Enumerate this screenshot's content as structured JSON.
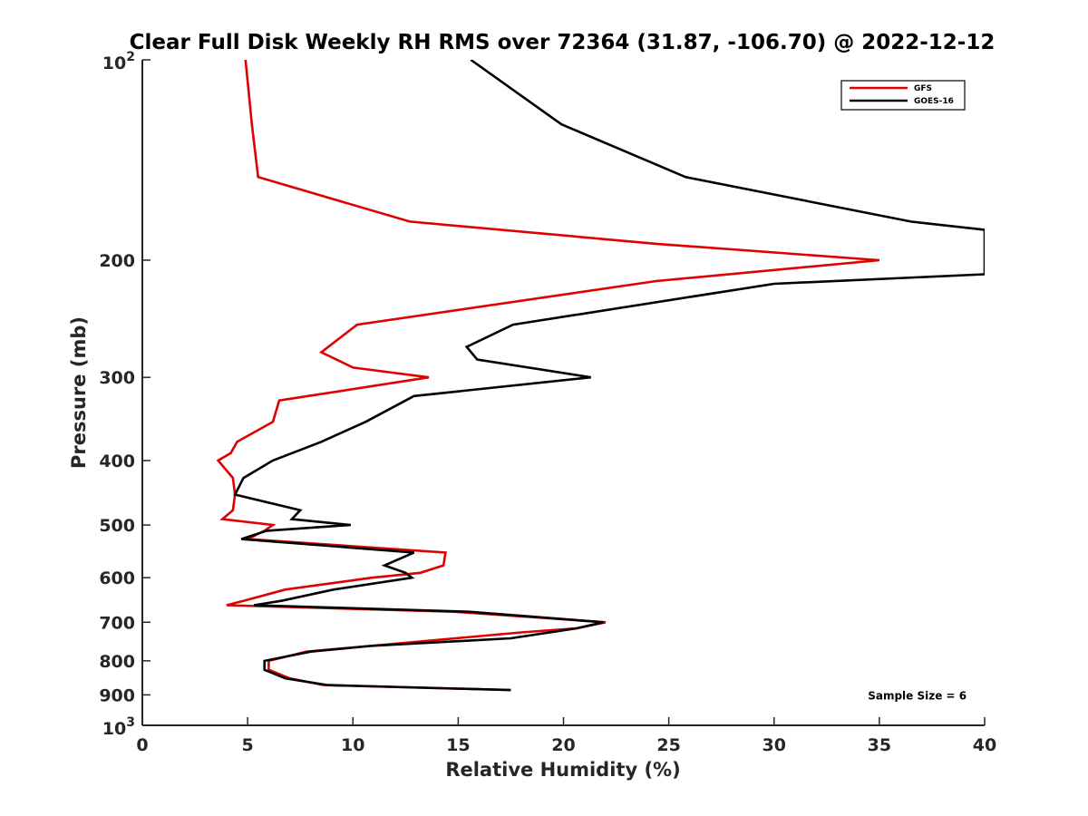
{
  "chart_data": {
    "type": "line",
    "title": "Clear Full Disk Weekly RH RMS over 72364 (31.87, -106.70) @ 2022-12-12",
    "xlabel": "Relative Humidity (%)",
    "ylabel": "Pressure (mb)",
    "xlim": [
      0,
      40
    ],
    "ylim": [
      100,
      1000
    ],
    "y_scale": "log",
    "y_reversed": true,
    "grid": false,
    "legend_position": "top-right",
    "x_ticks": [
      0,
      5,
      10,
      15,
      20,
      25,
      30,
      35,
      40
    ],
    "y_ticks": [
      {
        "value": 100,
        "base": "10",
        "exp": "2"
      },
      {
        "value": 200,
        "label": "200"
      },
      {
        "value": 300,
        "label": "300"
      },
      {
        "value": 400,
        "label": "400"
      },
      {
        "value": 500,
        "label": "500"
      },
      {
        "value": 600,
        "label": "600"
      },
      {
        "value": 700,
        "label": "700"
      },
      {
        "value": 800,
        "label": "800"
      },
      {
        "value": 900,
        "label": "900"
      },
      {
        "value": 1000,
        "base": "10",
        "exp": "3"
      }
    ],
    "series": [
      {
        "name": "GFS",
        "color": "#e00000",
        "points": [
          [
            4.9,
            100
          ],
          [
            5.2,
            125
          ],
          [
            5.5,
            150
          ],
          [
            12.7,
            175
          ],
          [
            24.4,
            189
          ],
          [
            35.0,
            200
          ],
          [
            24.4,
            215
          ],
          [
            10.2,
            250
          ],
          [
            8.5,
            275
          ],
          [
            10.0,
            290
          ],
          [
            13.6,
            300
          ],
          [
            6.5,
            325
          ],
          [
            6.2,
            350
          ],
          [
            4.5,
            375
          ],
          [
            4.2,
            390
          ],
          [
            3.6,
            400
          ],
          [
            4.3,
            425
          ],
          [
            4.4,
            450
          ],
          [
            4.3,
            475
          ],
          [
            3.8,
            490
          ],
          [
            6.2,
            500
          ],
          [
            5.8,
            510
          ],
          [
            5.0,
            525
          ],
          [
            14.4,
            550
          ],
          [
            14.3,
            575
          ],
          [
            13.2,
            590
          ],
          [
            10.9,
            600
          ],
          [
            6.8,
            625
          ],
          [
            4.8,
            650
          ],
          [
            4.0,
            660
          ],
          [
            14.8,
            675
          ],
          [
            22.0,
            700
          ],
          [
            20.6,
            715
          ],
          [
            18.0,
            725
          ],
          [
            7.8,
            775
          ],
          [
            6.0,
            800
          ],
          [
            6.0,
            825
          ],
          [
            7.0,
            850
          ],
          [
            8.6,
            870
          ],
          [
            17.5,
            885
          ]
        ]
      },
      {
        "name": "GOES-16",
        "color": "#000000",
        "points": [
          [
            15.6,
            100
          ],
          [
            19.9,
            125
          ],
          [
            25.8,
            150
          ],
          [
            36.5,
            175
          ],
          [
            40.0,
            180
          ],
          [
            40.0,
            210
          ],
          [
            30.0,
            217
          ],
          [
            17.6,
            250
          ],
          [
            15.4,
            270
          ],
          [
            15.9,
            282
          ],
          [
            21.3,
            300
          ],
          [
            12.9,
            320
          ],
          [
            10.6,
            350
          ],
          [
            8.5,
            375
          ],
          [
            6.2,
            400
          ],
          [
            4.8,
            425
          ],
          [
            4.4,
            450
          ],
          [
            7.5,
            475
          ],
          [
            7.1,
            490
          ],
          [
            9.9,
            500
          ],
          [
            5.9,
            510
          ],
          [
            4.7,
            525
          ],
          [
            12.9,
            550
          ],
          [
            11.5,
            575
          ],
          [
            12.5,
            590
          ],
          [
            12.8,
            600
          ],
          [
            9.1,
            625
          ],
          [
            6.6,
            650
          ],
          [
            5.3,
            660
          ],
          [
            15.5,
            675
          ],
          [
            21.9,
            700
          ],
          [
            20.6,
            715
          ],
          [
            17.5,
            740
          ],
          [
            10.8,
            760
          ],
          [
            8.0,
            775
          ],
          [
            5.8,
            800
          ],
          [
            5.8,
            825
          ],
          [
            6.8,
            850
          ],
          [
            8.8,
            870
          ],
          [
            17.5,
            885
          ]
        ]
      }
    ],
    "annotations": [
      {
        "text": "Sample Size = 6",
        "x": 36.8,
        "y": 900
      }
    ]
  }
}
